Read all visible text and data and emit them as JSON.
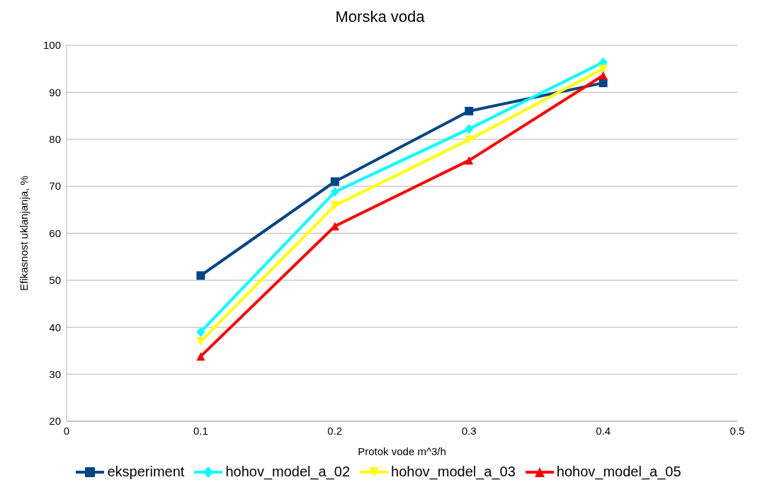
{
  "chart_data": {
    "type": "line",
    "title": "Morska voda",
    "xlabel": "Protok vode m^3/h",
    "ylabel": "Efikasnost uklanjanja,  %",
    "x": [
      0.1,
      0.2,
      0.3,
      0.4
    ],
    "series": [
      {
        "name": "eksperiment",
        "color": "#004586",
        "values": [
          51,
          71,
          86,
          92
        ],
        "marker": "square"
      },
      {
        "name": "hohov_model_a_02",
        "color": "#00ffff",
        "values": [
          39,
          68.8,
          82.2,
          96.4
        ],
        "marker": "diamond"
      },
      {
        "name": "hohov_model_a_03",
        "color": "#ffff00",
        "values": [
          37,
          65.9,
          79.9,
          95
        ],
        "marker": "triangle-down"
      },
      {
        "name": "hohov_model_a_05",
        "color": "#ff0000",
        "values": [
          33.8,
          61.5,
          75.5,
          93.6
        ],
        "marker": "triangle"
      }
    ],
    "xlim": [
      0,
      0.5
    ],
    "xticks": [
      0,
      0.1,
      0.2,
      0.3,
      0.4,
      0.5
    ],
    "ylim": [
      20,
      100
    ],
    "yticks": [
      20,
      30,
      40,
      50,
      60,
      70,
      80,
      90,
      100
    ],
    "grid": "y",
    "legend": "bottom",
    "line_style": "solid"
  }
}
